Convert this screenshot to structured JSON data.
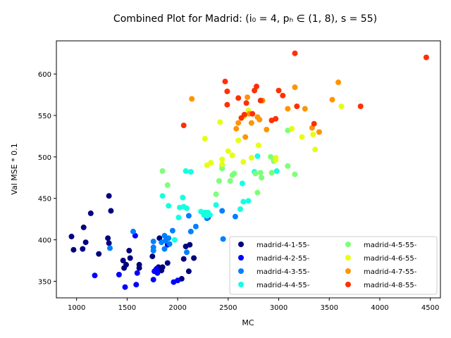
{
  "chart_data": {
    "type": "scatter",
    "title": "Combined Plot for Madrid: (i₀ = 4, pₕ ∈ (1, 8), s = 55)",
    "xlabel": "MC",
    "ylabel": "Val MSE * 0.1",
    "xlim": [
      800,
      4600
    ],
    "ylim": [
      330,
      640
    ],
    "xticks": [
      1000,
      1500,
      2000,
      2500,
      3000,
      3500,
      4000,
      4500
    ],
    "yticks": [
      350,
      400,
      450,
      500,
      550,
      600
    ],
    "grid": false,
    "legend_position": "lower-right",
    "series": [
      {
        "name": "madrid-4-1-55-",
        "color": "#00007f",
        "points": [
          [
            950,
            404
          ],
          [
            970,
            388
          ],
          [
            1060,
            389
          ],
          [
            1070,
            415
          ],
          [
            1090,
            397
          ],
          [
            1140,
            432
          ],
          [
            1220,
            383
          ],
          [
            1310,
            402
          ],
          [
            1320,
            396
          ],
          [
            1320,
            453
          ],
          [
            1340,
            435
          ],
          [
            1460,
            375
          ],
          [
            1470,
            366
          ],
          [
            1490,
            370
          ],
          [
            1520,
            387
          ],
          [
            1530,
            378
          ],
          [
            1620,
            370
          ],
          [
            1620,
            366
          ],
          [
            1750,
            380
          ],
          [
            1810,
            367
          ],
          [
            1820,
            402
          ],
          [
            1840,
            363
          ],
          [
            1850,
            367
          ],
          [
            1900,
            372
          ],
          [
            2040,
            353
          ],
          [
            2060,
            377
          ],
          [
            2080,
            392
          ],
          [
            2110,
            362
          ],
          [
            2120,
            394
          ],
          [
            2160,
            378
          ],
          [
            2300,
            427
          ]
        ]
      },
      {
        "name": "madrid-4-2-55-",
        "color": "#0000ff",
        "points": [
          [
            1180,
            357
          ],
          [
            1420,
            358
          ],
          [
            1480,
            343
          ],
          [
            1580,
            405
          ],
          [
            1590,
            346
          ],
          [
            1600,
            360
          ],
          [
            1760,
            352
          ],
          [
            1770,
            362
          ],
          [
            1790,
            365
          ],
          [
            1800,
            360
          ],
          [
            1900,
            394
          ],
          [
            1960,
            349
          ],
          [
            2000,
            351
          ]
        ]
      },
      {
        "name": "madrid-4-3-55-",
        "color": "#0080ff",
        "points": [
          [
            1330,
            390
          ],
          [
            1560,
            410
          ],
          [
            1760,
            398
          ],
          [
            1760,
            391
          ],
          [
            1760,
            387
          ],
          [
            1840,
            397
          ],
          [
            1870,
            389
          ],
          [
            1870,
            405
          ],
          [
            1880,
            399
          ],
          [
            1910,
            402
          ],
          [
            1920,
            395
          ],
          [
            1950,
            411
          ],
          [
            2090,
            385
          ],
          [
            2110,
            429
          ],
          [
            2130,
            410
          ],
          [
            2180,
            416
          ],
          [
            2290,
            426
          ],
          [
            2440,
            435
          ],
          [
            2450,
            401
          ],
          [
            2570,
            428
          ]
        ]
      },
      {
        "name": "madrid-4-4-55-",
        "color": "#15ffe1",
        "points": [
          [
            1850,
            453
          ],
          [
            1910,
            441
          ],
          [
            1970,
            400
          ],
          [
            2010,
            427
          ],
          [
            2020,
            439
          ],
          [
            2050,
            451
          ],
          [
            2060,
            440
          ],
          [
            2080,
            483
          ],
          [
            2090,
            438
          ],
          [
            2130,
            482
          ],
          [
            2230,
            434
          ],
          [
            2260,
            430
          ],
          [
            2270,
            433
          ],
          [
            2290,
            429
          ],
          [
            2300,
            433
          ],
          [
            2320,
            430
          ],
          [
            2380,
            442
          ],
          [
            2440,
            490
          ],
          [
            2620,
            437
          ],
          [
            2640,
            468
          ],
          [
            2650,
            446
          ],
          [
            2700,
            447
          ],
          [
            2760,
            482
          ],
          [
            2790,
            501
          ],
          [
            2980,
            483
          ]
        ]
      },
      {
        "name": "madrid-4-5-55-",
        "color": "#7dff7a",
        "points": [
          [
            1850,
            483
          ],
          [
            1900,
            466
          ],
          [
            2380,
            455
          ],
          [
            2410,
            471
          ],
          [
            2440,
            486
          ],
          [
            2520,
            471
          ],
          [
            2540,
            478
          ],
          [
            2560,
            480
          ],
          [
            2770,
            480
          ],
          [
            2790,
            457
          ],
          [
            2820,
            481
          ],
          [
            2830,
            475
          ],
          [
            2920,
            500
          ],
          [
            2930,
            481
          ],
          [
            2950,
            495
          ],
          [
            3090,
            489
          ],
          [
            3090,
            532
          ],
          [
            3160,
            479
          ]
        ]
      },
      {
        "name": "madrid-4-6-55-",
        "color": "#e4ff13",
        "points": [
          [
            2270,
            522
          ],
          [
            2290,
            490
          ],
          [
            2330,
            493
          ],
          [
            2420,
            542
          ],
          [
            2440,
            497
          ],
          [
            2440,
            491
          ],
          [
            2500,
            507
          ],
          [
            2540,
            502
          ],
          [
            2600,
            520
          ],
          [
            2650,
            494
          ],
          [
            2660,
            549
          ],
          [
            2700,
            556
          ],
          [
            2730,
            499
          ],
          [
            2800,
            514
          ],
          [
            2970,
            496
          ],
          [
            2970,
            499
          ],
          [
            3130,
            534
          ],
          [
            3230,
            524
          ],
          [
            3340,
            527
          ],
          [
            3360,
            509
          ],
          [
            3620,
            561
          ]
        ]
      },
      {
        "name": "madrid-4-7-55-",
        "color": "#ff9400",
        "points": [
          [
            2140,
            570
          ],
          [
            2580,
            534
          ],
          [
            2600,
            541
          ],
          [
            2670,
            524
          ],
          [
            2690,
            572
          ],
          [
            2710,
            552
          ],
          [
            2730,
            541
          ],
          [
            2790,
            548
          ],
          [
            2810,
            545
          ],
          [
            2840,
            568
          ],
          [
            2880,
            533
          ],
          [
            3090,
            558
          ],
          [
            3160,
            584
          ],
          [
            3260,
            558
          ],
          [
            3330,
            535
          ],
          [
            3400,
            530
          ],
          [
            3530,
            569
          ],
          [
            3590,
            590
          ]
        ]
      },
      {
        "name": "madrid-4-8-55-",
        "color": "#ff3000",
        "points": [
          [
            2060,
            538
          ],
          [
            2470,
            591
          ],
          [
            2490,
            579
          ],
          [
            2490,
            563
          ],
          [
            2600,
            571
          ],
          [
            2630,
            547
          ],
          [
            2660,
            551
          ],
          [
            2680,
            565
          ],
          [
            2740,
            552
          ],
          [
            2760,
            580
          ],
          [
            2780,
            585
          ],
          [
            2820,
            568
          ],
          [
            2930,
            544
          ],
          [
            2970,
            546
          ],
          [
            3000,
            580
          ],
          [
            3040,
            574
          ],
          [
            3160,
            625
          ],
          [
            3180,
            561
          ],
          [
            3350,
            540
          ],
          [
            3810,
            561
          ],
          [
            4460,
            620
          ]
        ]
      }
    ]
  }
}
